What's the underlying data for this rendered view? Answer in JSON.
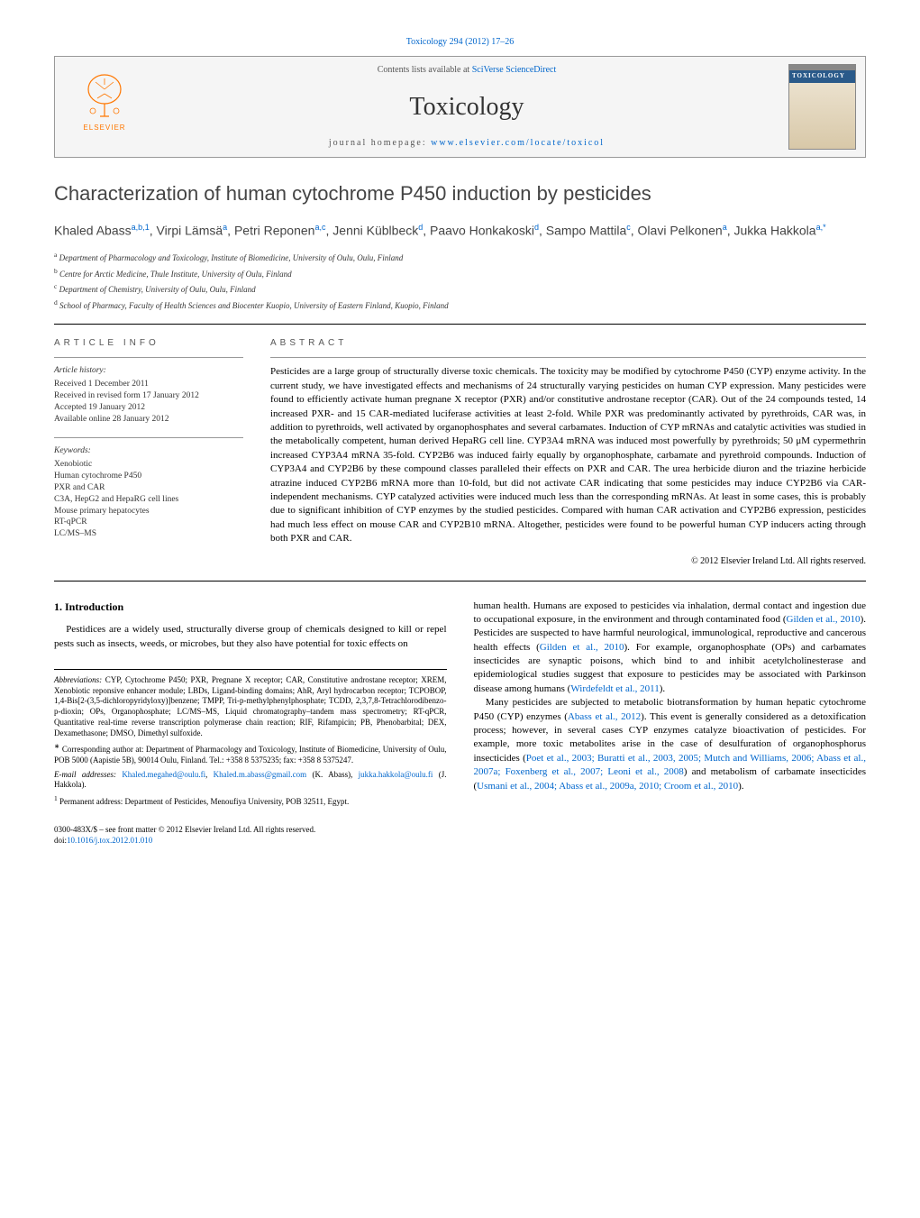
{
  "citation": "Toxicology 294 (2012) 17–26",
  "header": {
    "contents_prefix": "Contents lists available at ",
    "contents_link": "SciVerse ScienceDirect",
    "journal": "Toxicology",
    "homepage_prefix": "journal homepage: ",
    "homepage_link": "www.elsevier.com/locate/toxicol",
    "publisher_name": "ELSEVIER",
    "cover_label": "TOXICOLOGY"
  },
  "title": "Characterization of human cytochrome P450 induction by pesticides",
  "authors_html": "Khaled Abass|a,b,1|, Virpi Lämsä|a|, Petri Reponen|a,c|, Jenni Küblbeck|d|, Paavo Honkakoski|d|, Sampo Mattila|c|, Olavi Pelkonen|a|, Jukka Hakkola|a,*|",
  "affiliations": [
    {
      "k": "a",
      "t": "Department of Pharmacology and Toxicology, Institute of Biomedicine, University of Oulu, Oulu, Finland"
    },
    {
      "k": "b",
      "t": "Centre for Arctic Medicine, Thule Institute, University of Oulu, Finland"
    },
    {
      "k": "c",
      "t": "Department of Chemistry, University of Oulu, Oulu, Finland"
    },
    {
      "k": "d",
      "t": "School of Pharmacy, Faculty of Health Sciences and Biocenter Kuopio, University of Eastern Finland, Kuopio, Finland"
    }
  ],
  "article_info": {
    "label": "ARTICLE INFO",
    "history_hdr": "Article history:",
    "history": [
      "Received 1 December 2011",
      "Received in revised form 17 January 2012",
      "Accepted 19 January 2012",
      "Available online 28 January 2012"
    ],
    "keywords_hdr": "Keywords:",
    "keywords": [
      "Xenobiotic",
      "Human cytochrome P450",
      "PXR and CAR",
      "C3A, HepG2 and HepaRG cell lines",
      "Mouse primary hepatocytes",
      "RT-qPCR",
      "LC/MS–MS"
    ]
  },
  "abstract": {
    "label": "ABSTRACT",
    "text": "Pesticides are a large group of structurally diverse toxic chemicals. The toxicity may be modified by cytochrome P450 (CYP) enzyme activity. In the current study, we have investigated effects and mechanisms of 24 structurally varying pesticides on human CYP expression. Many pesticides were found to efficiently activate human pregnane X receptor (PXR) and/or constitutive androstane receptor (CAR). Out of the 24 compounds tested, 14 increased PXR- and 15 CAR-mediated luciferase activities at least 2-fold. While PXR was predominantly activated by pyrethroids, CAR was, in addition to pyrethroids, well activated by organophosphates and several carbamates. Induction of CYP mRNAs and catalytic activities was studied in the metabolically competent, human derived HepaRG cell line. CYP3A4 mRNA was induced most powerfully by pyrethroids; 50 μM cypermethrin increased CYP3A4 mRNA 35-fold. CYP2B6 was induced fairly equally by organophosphate, carbamate and pyrethroid compounds. Induction of CYP3A4 and CYP2B6 by these compound classes paralleled their effects on PXR and CAR. The urea herbicide diuron and the triazine herbicide atrazine induced CYP2B6 mRNA more than 10-fold, but did not activate CAR indicating that some pesticides may induce CYP2B6 via CAR-independent mechanisms. CYP catalyzed activities were induced much less than the corresponding mRNAs. At least in some cases, this is probably due to significant inhibition of CYP enzymes by the studied pesticides. Compared with human CAR activation and CYP2B6 expression, pesticides had much less effect on mouse CAR and CYP2B10 mRNA. Altogether, pesticides were found to be powerful human CYP inducers acting through both PXR and CAR.",
    "copyright": "© 2012 Elsevier Ireland Ltd. All rights reserved."
  },
  "intro": {
    "heading": "1. Introduction",
    "p1": "Pestidices are a widely used, structurally diverse group of chemicals designed to kill or repel pests such as insects, weeds, or microbes, but they also have potential for toxic effects on",
    "p2a": "human health. Humans are exposed to pesticides via inhalation, dermal contact and ingestion due to occupational exposure, in the environment and through contaminated food (",
    "p2b": "). Pesticides are suspected to have harmful neurological, immunological, reproductive and cancerous health effects (",
    "p2c": "). For example, organophosphate (OPs) and carbamates insecticides are synaptic poisons, which bind to and inhibit acetylcholinesterase and epidemiological studies suggest that exposure to pesticides may be associated with Parkinson disease among humans (",
    "p2d": ").",
    "p3a": "Many pesticides are subjected to metabolic biotransformation by human hepatic cytochrome P450 (CYP) enzymes (",
    "p3b": "). This event is generally considered as a detoxification process; however, in several cases CYP enzymes catalyze bioactivation of pesticides. For example, more toxic metabolites arise in the case of desulfuration of organophosphorus insecticides (",
    "p3c": ") and metabolism of carbamate insecticides (",
    "p3d": ").",
    "cites": {
      "gilden2010a": "Gilden et al., 2010",
      "gilden2010b": "Gilden et al., 2010",
      "wirdefeldt2011": "Wirdefeldt et al., 2011",
      "abass2012": "Abass et al., 2012",
      "poet2003": "Poet et al., 2003; Buratti et al., 2003, 2005; Mutch and Williams, 2006; Abass et al., 2007a; Foxenberg et al., 2007; Leoni et al., 2008",
      "usmani2004": "Usmani et al., 2004; Abass et al., 2009a, 2010; Croom et al., 2010"
    }
  },
  "footnotes": {
    "abbrev_label": "Abbreviations:",
    "abbrev": " CYP, Cytochrome P450; PXR, Pregnane X receptor; CAR, Constitutive androstane receptor; XREM, Xenobiotic reponsive enhancer module; LBDs, Ligand-binding domains; AhR, Aryl hydrocarbon receptor; TCPOBOP, 1,4-Bis[2-(3,5-dichloropyridyloxy)]benzene; TMPP, Tri-p-methylphenylphosphate; TCDD, 2,3,7,8-Tetrachlorodibenzo-p-dioxin; OPs, Organophosphate; LC/MS–MS, Liquid chromatography–tandem mass spectrometry; RT-qPCR, Quantitative real-time reverse transcription polymerase chain reaction; RIF, Rifampicin; PB, Phenobarbital; DEX, Dexamethasone; DMSO, Dimethyl sulfoxide.",
    "corr_label": "∗",
    "corr": " Corresponding author at: Department of Pharmacology and Toxicology, Institute of Biomedicine, University of Oulu, POB 5000 (Aapistie 5B), 90014 Oulu, Finland. Tel.: +358 8 5375235; fax: +358 8 5375247.",
    "email_label": "E-mail addresses:",
    "email1": "Khaled.megahed@oulu.fi",
    "email2": "Khaled.m.abass@gmail.com",
    "email_after1": " (K. Abass), ",
    "email3": "jukka.hakkola@oulu.fi",
    "email_after2": " (J. Hakkola).",
    "perm_label": "1",
    "perm": " Permanent address: Department of Pesticides, Menoufiya University, POB 32511, Egypt."
  },
  "bottom": {
    "issn": "0300-483X/$ – see front matter © 2012 Elsevier Ireland Ltd. All rights reserved.",
    "doi_label": "doi:",
    "doi": "10.1016/j.tox.2012.01.010"
  },
  "colors": {
    "link": "#0066cc",
    "text": "#000000",
    "muted": "#555555",
    "logo": "#ff7700",
    "cover_band": "#2a5a8a"
  }
}
